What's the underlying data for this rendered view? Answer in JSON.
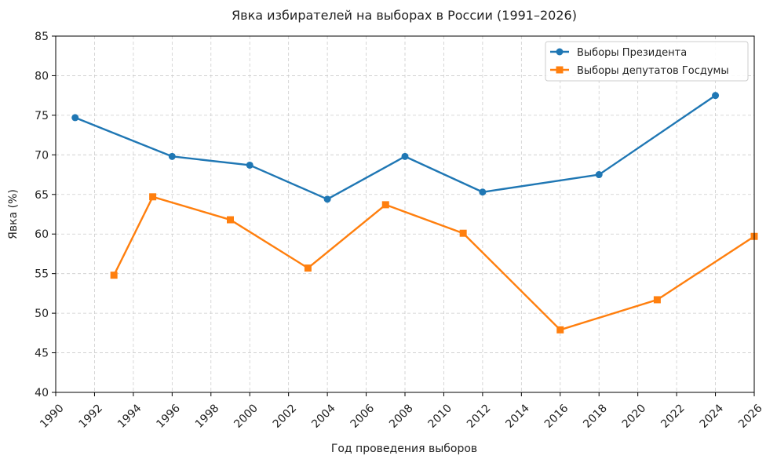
{
  "chart_data": {
    "type": "line",
    "title": "Явка избирателей на выборах в России (1991–2026)",
    "xlabel": "Год проведения выборов",
    "ylabel": "Явка (%)",
    "xlim": [
      1990,
      2026
    ],
    "ylim": [
      40,
      85
    ],
    "xticks": [
      1990,
      1992,
      1994,
      1996,
      1998,
      2000,
      2002,
      2004,
      2006,
      2008,
      2010,
      2012,
      2014,
      2016,
      2018,
      2020,
      2022,
      2024,
      2026
    ],
    "yticks": [
      40,
      45,
      50,
      55,
      60,
      65,
      70,
      75,
      80,
      85
    ],
    "grid": true,
    "legend_position": "top-right",
    "series": [
      {
        "name": "Выборы Президента",
        "color": "#1f77b4",
        "marker": "circle",
        "points": [
          {
            "x": 1991,
            "y": 74.7
          },
          {
            "x": 1996,
            "y": 69.8
          },
          {
            "x": 2000,
            "y": 68.7
          },
          {
            "x": 2004,
            "y": 64.4
          },
          {
            "x": 2008,
            "y": 69.8
          },
          {
            "x": 2012,
            "y": 65.3
          },
          {
            "x": 2018,
            "y": 67.5
          },
          {
            "x": 2024,
            "y": 77.5
          }
        ]
      },
      {
        "name": "Выборы депутатов Госдумы",
        "color": "#ff7f0e",
        "marker": "square",
        "points": [
          {
            "x": 1993,
            "y": 54.8
          },
          {
            "x": 1995,
            "y": 64.7
          },
          {
            "x": 1999,
            "y": 61.8
          },
          {
            "x": 2003,
            "y": 55.7
          },
          {
            "x": 2007,
            "y": 63.7
          },
          {
            "x": 2011,
            "y": 60.1
          },
          {
            "x": 2016,
            "y": 47.9
          },
          {
            "x": 2021,
            "y": 51.7
          },
          {
            "x": 2026,
            "y": 59.7
          }
        ]
      }
    ]
  }
}
